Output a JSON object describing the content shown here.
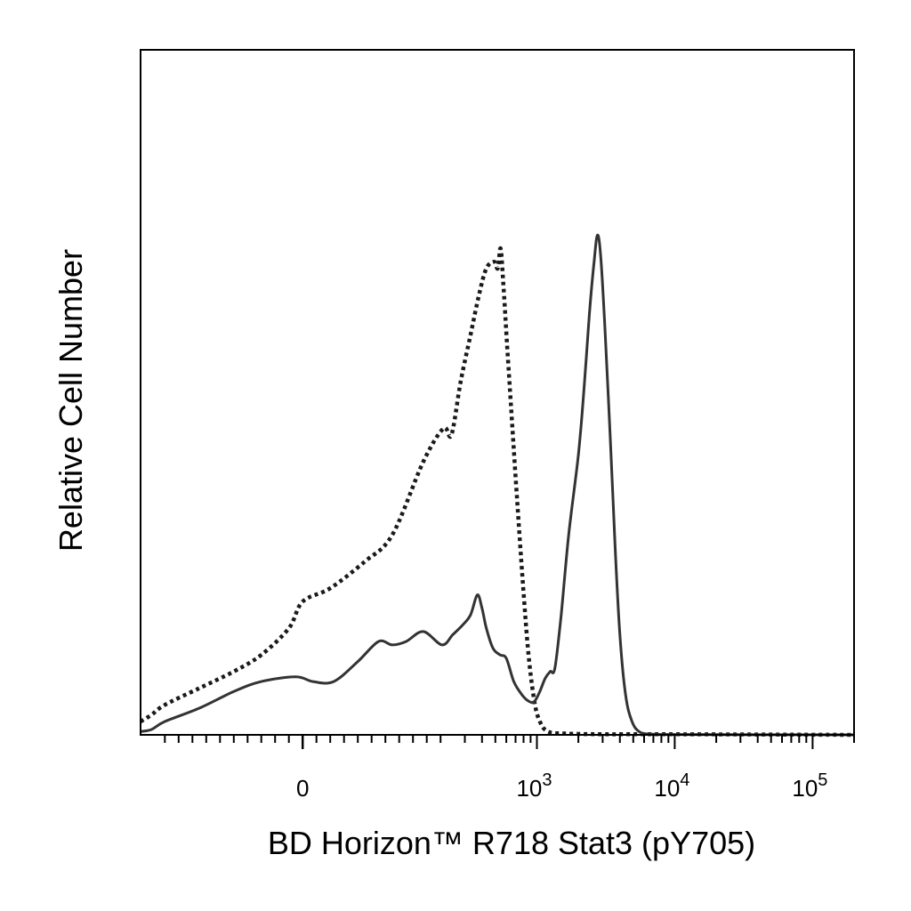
{
  "chart_data": {
    "type": "line",
    "title": "",
    "xlabel": "BD Horizon™ R718 Stat3 (pY705)",
    "ylabel": "Relative Cell Number",
    "x_scale": "biexponential",
    "xlim": [
      -300,
      200000
    ],
    "ylim": [
      0,
      100
    ],
    "grid": false,
    "legend": "none",
    "x_tick_labels": [
      {
        "value": 0,
        "base": "0",
        "exponent": ""
      },
      {
        "value": 1000,
        "base": "10",
        "exponent": "3"
      },
      {
        "value": 10000,
        "base": "10",
        "exponent": "4"
      },
      {
        "value": 100000,
        "base": "10",
        "exponent": "5"
      }
    ],
    "series": [
      {
        "style": "dotted",
        "color": "#1a1a1a",
        "points": [
          [
            -300,
            2
          ],
          [
            -250,
            3
          ],
          [
            -200,
            4.5
          ],
          [
            -150,
            7
          ],
          [
            -100,
            9.5
          ],
          [
            -60,
            12
          ],
          [
            -20,
            16
          ],
          [
            0,
            20
          ],
          [
            40,
            22
          ],
          [
            90,
            26
          ],
          [
            130,
            30
          ],
          [
            175,
            41
          ],
          [
            210,
            46
          ],
          [
            240,
            45
          ],
          [
            280,
            53
          ],
          [
            330,
            60
          ],
          [
            380,
            66
          ],
          [
            430,
            70
          ],
          [
            490,
            71
          ],
          [
            520,
            70
          ],
          [
            545,
            73
          ],
          [
            570,
            68
          ],
          [
            610,
            58
          ],
          [
            660,
            47
          ],
          [
            720,
            35
          ],
          [
            790,
            23
          ],
          [
            870,
            12
          ],
          [
            960,
            5
          ],
          [
            1050,
            2
          ],
          [
            1200,
            0.5
          ],
          [
            1600,
            0.2
          ],
          [
            3000,
            0.1
          ],
          [
            10000,
            0.1
          ],
          [
            200000,
            0
          ]
        ]
      },
      {
        "style": "solid",
        "color": "#333333",
        "points": [
          [
            -300,
            0.5
          ],
          [
            -250,
            0.8
          ],
          [
            -200,
            2
          ],
          [
            -150,
            4
          ],
          [
            -100,
            6.5
          ],
          [
            -60,
            8
          ],
          [
            -10,
            8.7
          ],
          [
            15,
            8
          ],
          [
            45,
            8
          ],
          [
            80,
            11
          ],
          [
            110,
            14
          ],
          [
            130,
            13.5
          ],
          [
            150,
            14
          ],
          [
            175,
            15.5
          ],
          [
            205,
            13.5
          ],
          [
            245,
            15
          ],
          [
            290,
            16.5
          ],
          [
            330,
            18
          ],
          [
            370,
            21
          ],
          [
            400,
            19
          ],
          [
            430,
            16
          ],
          [
            480,
            13
          ],
          [
            540,
            12
          ],
          [
            600,
            11.5
          ],
          [
            680,
            8
          ],
          [
            780,
            6
          ],
          [
            880,
            5
          ],
          [
            960,
            5
          ],
          [
            1050,
            6.5
          ],
          [
            1150,
            8.5
          ],
          [
            1250,
            9.5
          ],
          [
            1350,
            10
          ],
          [
            1500,
            18
          ],
          [
            1700,
            30
          ],
          [
            2000,
            42
          ],
          [
            2200,
            52
          ],
          [
            2400,
            63
          ],
          [
            2600,
            71
          ],
          [
            2750,
            75
          ],
          [
            2900,
            72
          ],
          [
            3100,
            62
          ],
          [
            3400,
            45
          ],
          [
            3700,
            28
          ],
          [
            4000,
            15
          ],
          [
            4400,
            6
          ],
          [
            4900,
            2
          ],
          [
            5600,
            0.4
          ],
          [
            7000,
            0.1
          ],
          [
            10000,
            0.05
          ],
          [
            200000,
            0
          ]
        ]
      }
    ]
  }
}
